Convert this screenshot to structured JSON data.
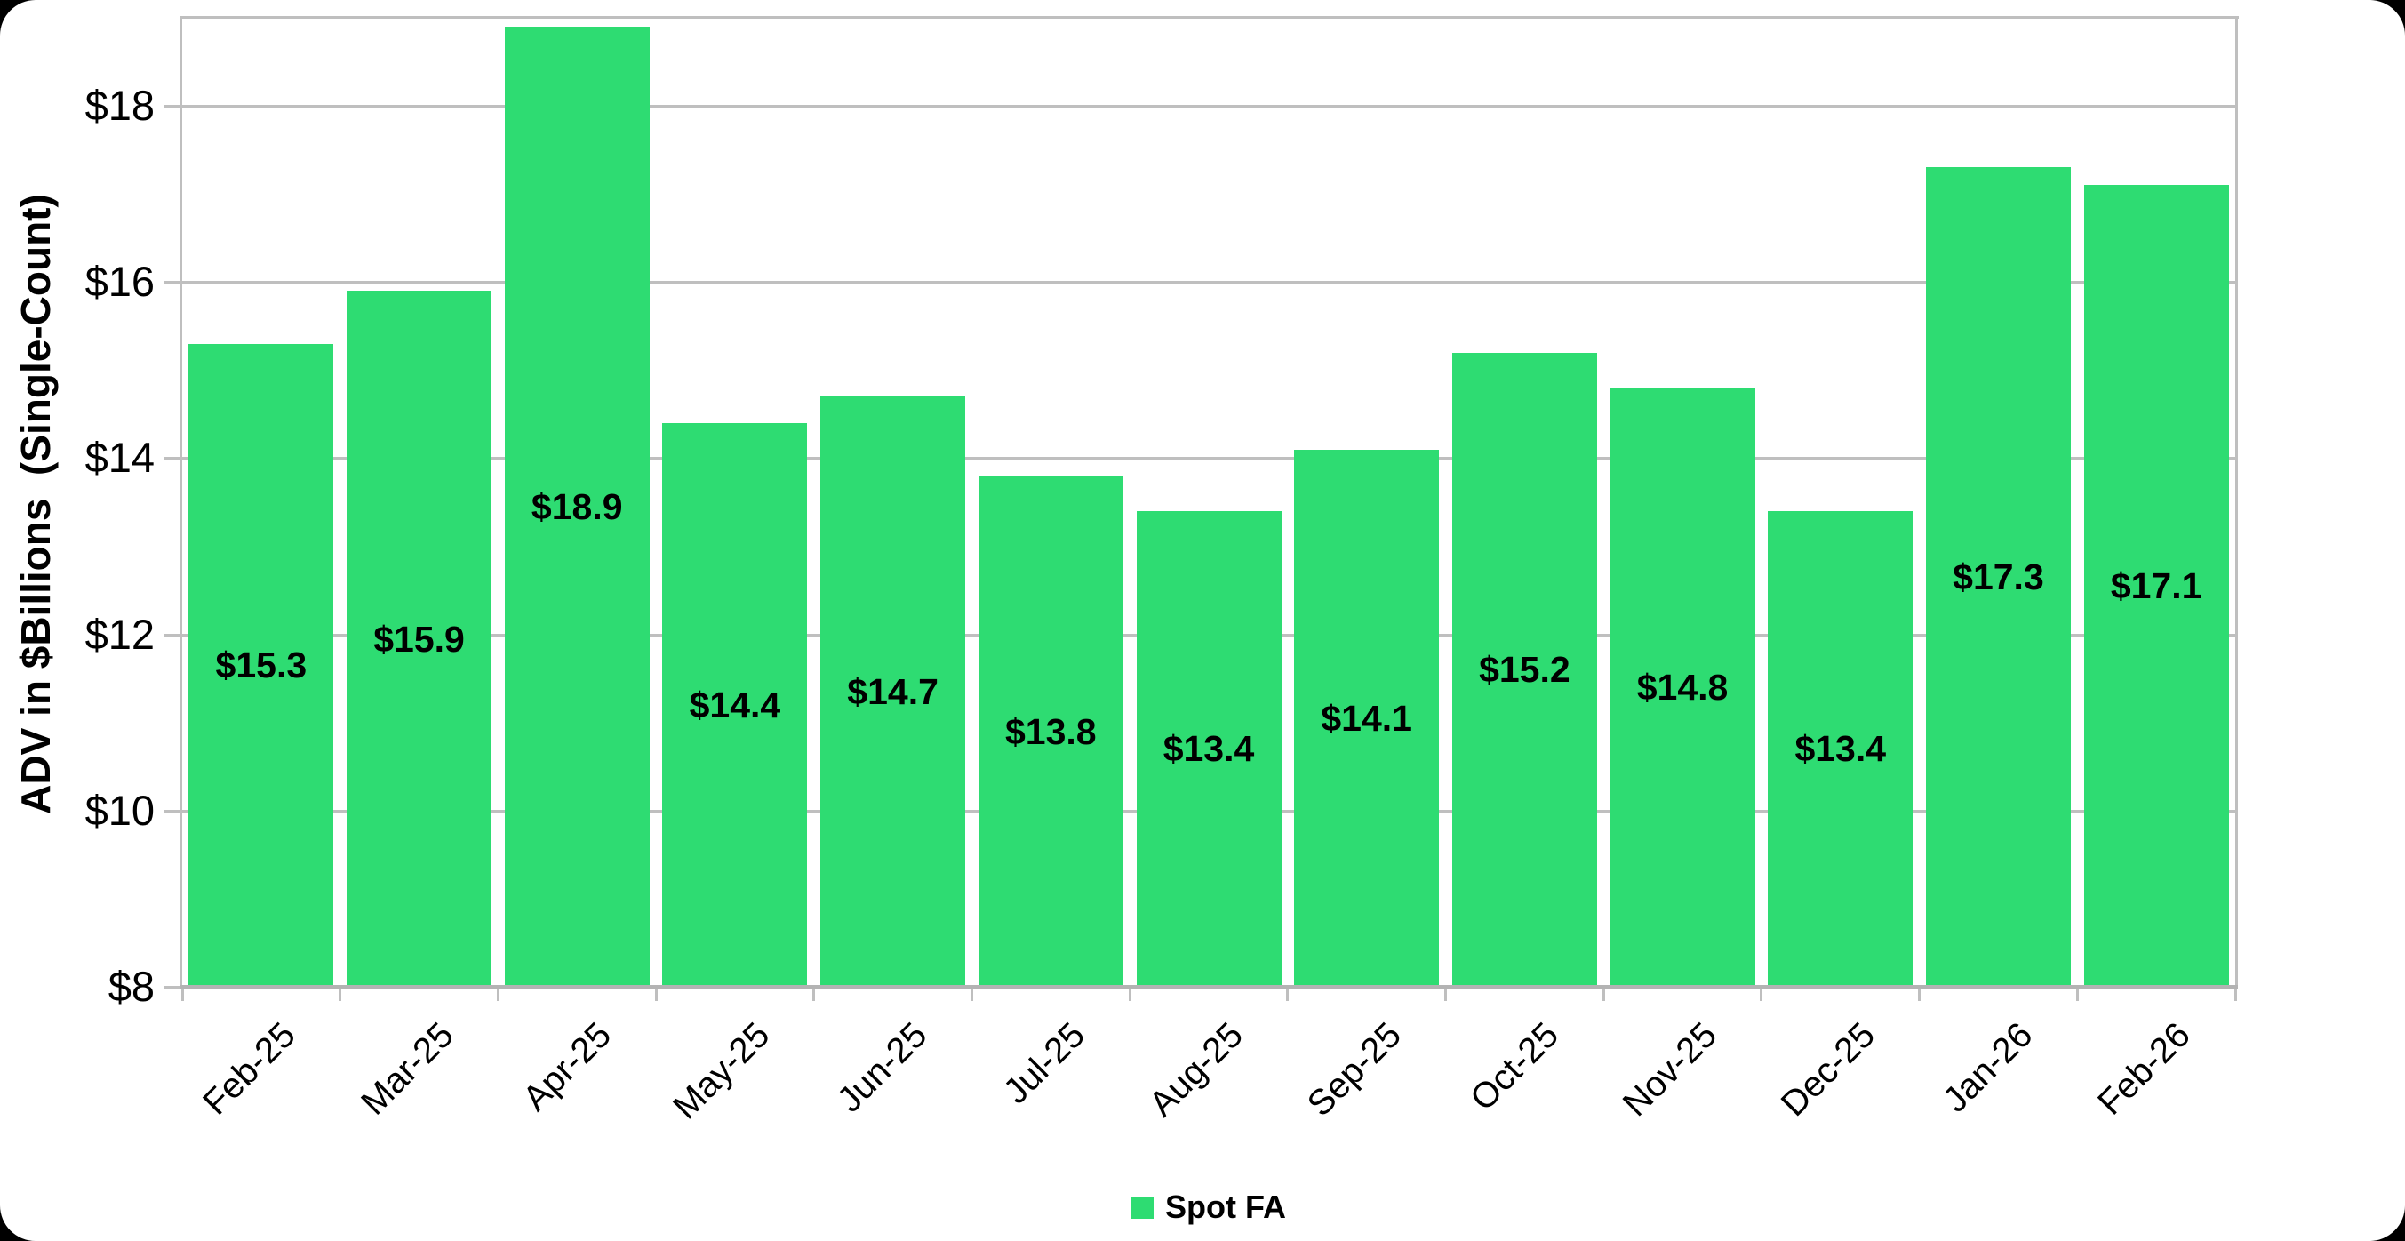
{
  "chart_data": {
    "type": "bar",
    "ylabel": "ADV in $Billions  (Single-Count)",
    "xlabel": "",
    "categories": [
      "Feb-25",
      "Mar-25",
      "Apr-25",
      "May-25",
      "Jun-25",
      "Jul-25",
      "Aug-25",
      "Sep-25",
      "Oct-25",
      "Nov-25",
      "Dec-25",
      "Jan-26",
      "Feb-26"
    ],
    "series": [
      {
        "name": "Spot FA",
        "values": [
          15.3,
          15.9,
          18.9,
          14.4,
          14.7,
          13.8,
          13.4,
          14.1,
          15.2,
          14.8,
          13.4,
          17.3,
          17.1
        ]
      }
    ],
    "data_labels": [
      "$15.3",
      "$15.9",
      "$18.9",
      "$14.4",
      "$14.7",
      "$13.8",
      "$13.4",
      "$14.1",
      "$15.2",
      "$14.8",
      "$13.4",
      "$17.3",
      "$17.1"
    ],
    "ylim": [
      8,
      19
    ],
    "yticks": [
      8,
      10,
      12,
      14,
      16,
      18
    ],
    "ytick_labels": [
      "$8",
      "$10",
      "$12",
      "$14",
      "$16",
      "$18"
    ],
    "grid": true,
    "legend_position": "bottom",
    "colors": {
      "bar": "#2EDC72",
      "gridline": "#BFBFBF",
      "axis_line": "#B3B3B3",
      "text": "#000000",
      "card_background": "#FFFFFF",
      "page_background": "#000000"
    }
  }
}
